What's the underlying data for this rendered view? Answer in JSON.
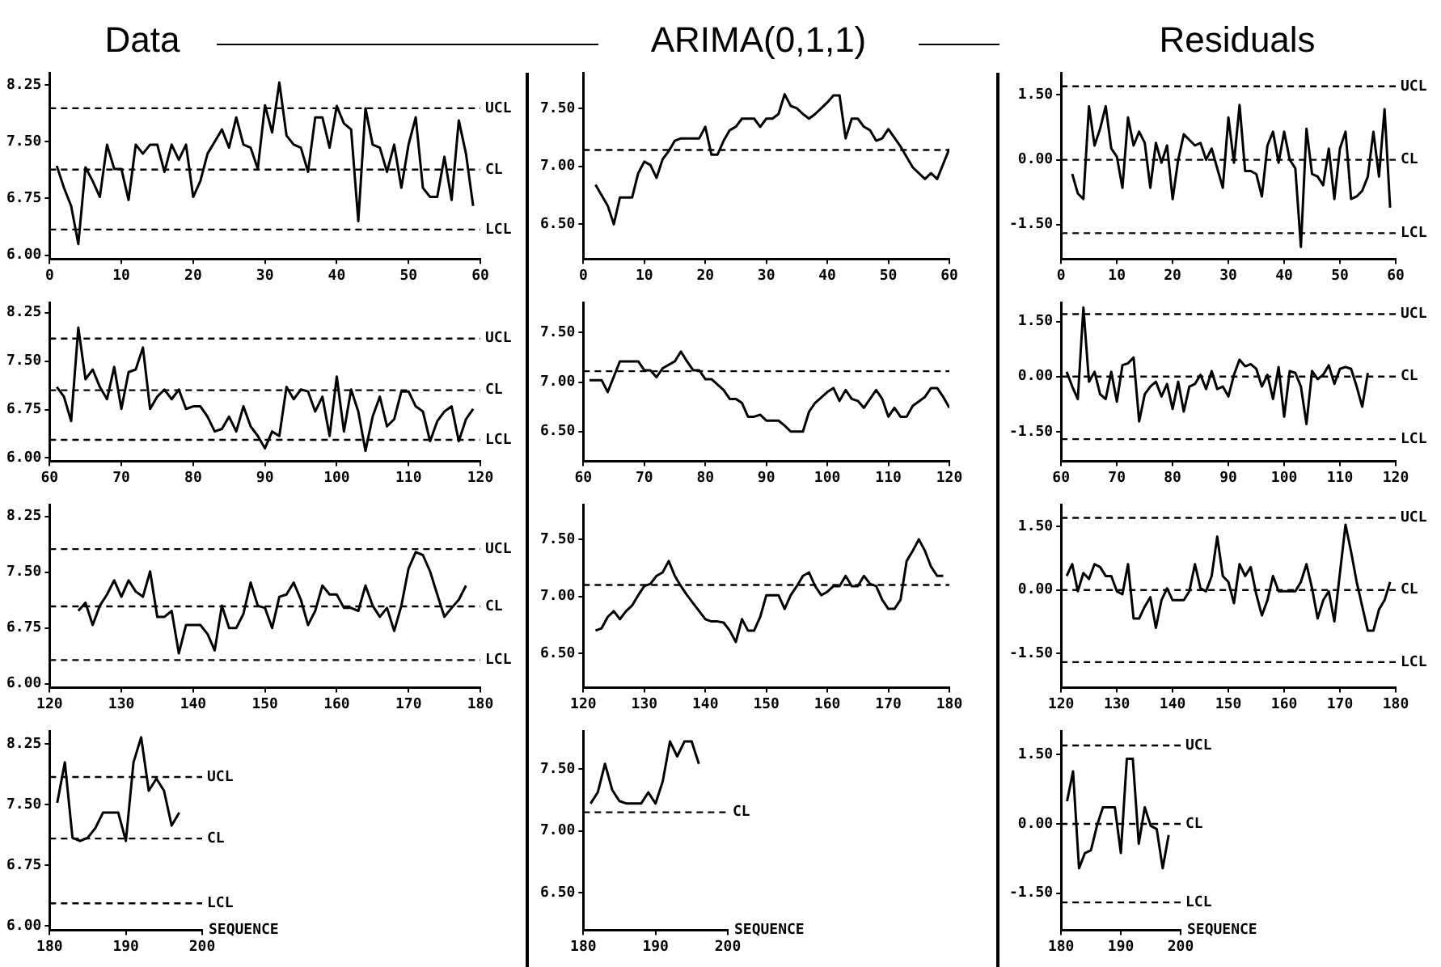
{
  "chart_data": [
    {
      "type": "line",
      "title": "Data",
      "color": "#000000",
      "marker": "none",
      "line_style": "solid",
      "grid": false,
      "xlim": [
        0,
        60
      ],
      "xticks": [
        0,
        10,
        20,
        30,
        40,
        50,
        60
      ],
      "ylim": [
        5.95,
        8.4
      ],
      "yticks": [
        {
          "value": 6,
          "label": "6.00"
        },
        {
          "value": 6.75,
          "label": "6.75"
        },
        {
          "value": 7.5,
          "label": "7.50"
        },
        {
          "value": 8.25,
          "label": "8.25"
        }
      ],
      "x": [
        1,
        2,
        3,
        4,
        5,
        6,
        7,
        8,
        9,
        10,
        11,
        12,
        13,
        14,
        15,
        16,
        17,
        18,
        19,
        20,
        21,
        22,
        23,
        24,
        25,
        26,
        27,
        28,
        29,
        30,
        31,
        32,
        33,
        34,
        35,
        36,
        37,
        38,
        39,
        40,
        41,
        42,
        43,
        44,
        45,
        46,
        47,
        48,
        49,
        50,
        51,
        52,
        53,
        54,
        55,
        56,
        57,
        58,
        59
      ],
      "values": [
        7.18,
        6.89,
        6.65,
        6.15,
        7.16,
        6.98,
        6.77,
        7.46,
        7.14,
        7.14,
        6.73,
        7.46,
        7.34,
        7.46,
        7.46,
        7.1,
        7.46,
        7.26,
        7.46,
        6.77,
        6.98,
        7.34,
        7.5,
        7.66,
        7.42,
        7.82,
        7.46,
        7.42,
        7.14,
        7.98,
        7.62,
        8.28,
        7.58,
        7.46,
        7.42,
        7.1,
        7.82,
        7.82,
        7.42,
        7.97,
        7.74,
        7.66,
        6.45,
        7.94,
        7.46,
        7.42,
        7.1,
        7.46,
        6.89,
        7.46,
        7.82,
        6.89,
        6.77,
        6.77,
        7.3,
        6.73,
        7.78,
        7.34,
        6.65
      ],
      "ref_lines": [
        {
          "axis": "y",
          "value": 7.94,
          "label": "UCL",
          "line_style": "dashed",
          "color": "#000000"
        },
        {
          "axis": "y",
          "value": 7.13,
          "label": "CL",
          "line_style": "dashed",
          "color": "#000000"
        },
        {
          "axis": "y",
          "value": 6.34,
          "label": "LCL",
          "line_style": "dashed",
          "color": "#000000"
        }
      ]
    },
    {
      "type": "line",
      "title": "ARIMA(0,1,1)",
      "color": "#000000",
      "marker": "none",
      "line_style": "solid",
      "grid": false,
      "xlim": [
        0,
        60
      ],
      "xticks": [
        0,
        10,
        20,
        30,
        40,
        50,
        60
      ],
      "ylim": [
        6.2,
        7.8
      ],
      "yticks": [
        {
          "value": 6.5,
          "label": "6.50"
        },
        {
          "value": 7,
          "label": "7.00"
        },
        {
          "value": 7.5,
          "label": "7.50"
        }
      ],
      "x": [
        2,
        3,
        4,
        5,
        6,
        7,
        8,
        9,
        10,
        11,
        12,
        13,
        14,
        15,
        16,
        17,
        18,
        19,
        20,
        21,
        22,
        23,
        24,
        25,
        26,
        27,
        28,
        29,
        30,
        31,
        32,
        33,
        34,
        35,
        36,
        37,
        38,
        39,
        40,
        41,
        42,
        43,
        44,
        45,
        46,
        47,
        48,
        49,
        50,
        52,
        54,
        56,
        57,
        58,
        60
      ],
      "values": [
        6.84,
        6.75,
        6.66,
        6.5,
        6.73,
        6.73,
        6.73,
        6.94,
        7.04,
        7.01,
        6.9,
        7.06,
        7.13,
        7.22,
        7.24,
        7.24,
        7.24,
        7.24,
        7.34,
        7.1,
        7.1,
        7.22,
        7.31,
        7.34,
        7.41,
        7.41,
        7.41,
        7.34,
        7.41,
        7.41,
        7.45,
        7.62,
        7.52,
        7.5,
        7.45,
        7.41,
        7.45,
        7.5,
        7.55,
        7.61,
        7.61,
        7.24,
        7.41,
        7.41,
        7.34,
        7.31,
        7.22,
        7.24,
        7.32,
        7.17,
        6.99,
        6.89,
        6.94,
        6.89,
        7.15
      ],
      "ref_lines": [
        {
          "axis": "y",
          "value": 7.14,
          "line_style": "dashed",
          "color": "#000000"
        }
      ]
    },
    {
      "type": "line",
      "title": "Residuals",
      "color": "#000000",
      "marker": "none",
      "line_style": "solid",
      "grid": false,
      "xlim": [
        0,
        60
      ],
      "xticks": [
        0,
        10,
        20,
        30,
        40,
        50,
        60
      ],
      "ylim": [
        -2.3,
        2
      ],
      "yticks": [
        {
          "value": -1.5,
          "label": "-1.50"
        },
        {
          "value": 0,
          "label": "0.00"
        },
        {
          "value": 1.5,
          "label": "1.50"
        }
      ],
      "x": [
        2,
        3,
        4,
        5,
        6,
        7,
        8,
        9,
        10,
        11,
        12,
        13,
        14,
        15,
        16,
        17,
        18,
        19,
        20,
        21,
        22,
        23,
        24,
        25,
        26,
        27,
        28,
        29,
        30,
        31,
        32,
        33,
        34,
        35,
        36,
        37,
        38,
        39,
        40,
        41,
        42,
        43,
        44,
        45,
        46,
        47,
        48,
        49,
        50,
        51,
        52,
        53,
        54,
        55,
        56,
        57,
        58,
        59
      ],
      "values": [
        -0.33,
        -0.78,
        -0.91,
        1.24,
        0.33,
        0.72,
        1.24,
        0.26,
        0.07,
        -0.65,
        0.98,
        0.33,
        0.65,
        0.39,
        -0.65,
        0.39,
        -0.07,
        0.33,
        -0.91,
        0,
        0.59,
        0.46,
        0.33,
        0.39,
        0,
        0.26,
        -0.2,
        -0.65,
        0.98,
        -0.07,
        1.27,
        -0.26,
        -0.26,
        -0.33,
        -0.85,
        0.33,
        0.65,
        -0.07,
        0.65,
        0,
        -0.2,
        -2.02,
        0.72,
        -0.33,
        -0.39,
        -0.59,
        0.26,
        -0.91,
        0.26,
        0.65,
        -0.91,
        -0.85,
        -0.72,
        -0.39,
        0.65,
        -0.39,
        1.17,
        -1.11
      ],
      "ref_lines": [
        {
          "axis": "y",
          "value": 1.7,
          "label": "UCL",
          "line_style": "dashed",
          "color": "#000000"
        },
        {
          "axis": "y",
          "value": 0,
          "label": "CL",
          "line_style": "dashed",
          "color": "#000000"
        },
        {
          "axis": "y",
          "value": -1.7,
          "label": "LCL",
          "line_style": "dashed",
          "color": "#000000"
        }
      ]
    },
    {
      "type": "line",
      "color": "#000000",
      "marker": "none",
      "line_style": "solid",
      "grid": false,
      "xlim": [
        60,
        120
      ],
      "xticks": [
        60,
        70,
        80,
        90,
        100,
        110,
        120
      ],
      "ylim": [
        5.95,
        8.4
      ],
      "yticks": [
        {
          "value": 6,
          "label": "6.00"
        },
        {
          "value": 6.75,
          "label": "6.75"
        },
        {
          "value": 7.5,
          "label": "7.50"
        },
        {
          "value": 8.25,
          "label": "8.25"
        }
      ],
      "x": [
        61,
        62,
        63,
        64,
        65,
        66,
        67,
        68,
        69,
        70,
        71,
        72,
        73,
        74,
        75,
        76,
        77,
        78,
        79,
        80,
        81,
        82,
        83,
        84,
        85,
        86,
        87,
        88,
        89,
        90,
        91,
        92,
        93,
        94,
        95,
        96,
        97,
        98,
        99,
        100,
        101,
        102,
        103,
        104,
        105,
        106,
        107,
        108,
        109,
        110,
        111,
        112,
        113,
        114,
        115,
        116,
        117,
        118,
        119
      ],
      "values": [
        7.1,
        6.95,
        6.57,
        8.02,
        7.22,
        7.37,
        7.1,
        6.91,
        7.41,
        6.76,
        7.33,
        7.37,
        7.71,
        6.76,
        6.95,
        7.06,
        6.91,
        7.06,
        6.76,
        6.8,
        6.8,
        6.64,
        6.41,
        6.45,
        6.64,
        6.41,
        6.8,
        6.49,
        6.34,
        6.15,
        6.41,
        6.34,
        7.1,
        6.91,
        7.06,
        7.03,
        6.72,
        6.95,
        6.34,
        7.26,
        6.41,
        7.06,
        6.72,
        6.11,
        6.64,
        6.95,
        6.49,
        6.6,
        7.03,
        7.03,
        6.8,
        6.72,
        6.26,
        6.57,
        6.72,
        6.8,
        6.26,
        6.6,
        6.76
      ],
      "ref_lines": [
        {
          "axis": "y",
          "value": 7.85,
          "label": "UCL",
          "line_style": "dashed",
          "color": "#000000"
        },
        {
          "axis": "y",
          "value": 7.05,
          "label": "CL",
          "line_style": "dashed",
          "color": "#000000"
        },
        {
          "axis": "y",
          "value": 6.28,
          "label": "LCL",
          "line_style": "dashed",
          "color": "#000000"
        }
      ]
    },
    {
      "type": "line",
      "color": "#000000",
      "marker": "none",
      "line_style": "solid",
      "grid": false,
      "xlim": [
        60,
        120
      ],
      "xticks": [
        60,
        70,
        80,
        90,
        100,
        110,
        120
      ],
      "ylim": [
        6.2,
        7.8
      ],
      "yticks": [
        {
          "value": 6.5,
          "label": "6.50"
        },
        {
          "value": 7,
          "label": "7.00"
        },
        {
          "value": 7.5,
          "label": "7.50"
        }
      ],
      "x": [
        61,
        62,
        63,
        64,
        66,
        67,
        68,
        69,
        70,
        71,
        72,
        73,
        75,
        76,
        77,
        78,
        79,
        80,
        81,
        83,
        84,
        85,
        86,
        87,
        88,
        89,
        90,
        92,
        93,
        94,
        95,
        96,
        97,
        98,
        100,
        101,
        102,
        103,
        104,
        105,
        106,
        108,
        109,
        110,
        111,
        112,
        113,
        114,
        116,
        117,
        118,
        119,
        120
      ],
      "values": [
        7.02,
        7.02,
        7.02,
        6.9,
        7.21,
        7.21,
        7.21,
        7.21,
        7.12,
        7.12,
        7.05,
        7.14,
        7.21,
        7.31,
        7.21,
        7.12,
        7.12,
        7.03,
        7.03,
        6.92,
        6.83,
        6.83,
        6.79,
        6.65,
        6.65,
        6.67,
        6.61,
        6.61,
        6.56,
        6.5,
        6.5,
        6.5,
        6.7,
        6.79,
        6.9,
        6.94,
        6.81,
        6.92,
        6.83,
        6.81,
        6.74,
        6.92,
        6.83,
        6.65,
        6.74,
        6.65,
        6.65,
        6.76,
        6.85,
        6.94,
        6.94,
        6.85,
        6.74
      ],
      "ref_lines": [
        {
          "axis": "y",
          "value": 7.11,
          "line_style": "dashed",
          "color": "#000000"
        }
      ]
    },
    {
      "type": "line",
      "color": "#000000",
      "marker": "none",
      "line_style": "solid",
      "grid": false,
      "xlim": [
        60,
        120
      ],
      "xticks": [
        60,
        70,
        80,
        90,
        100,
        110,
        120
      ],
      "ylim": [
        -2.3,
        2
      ],
      "yticks": [
        {
          "value": -1.5,
          "label": "-1.50"
        },
        {
          "value": 0,
          "label": "0.00"
        },
        {
          "value": 1.5,
          "label": "1.50"
        }
      ],
      "x": [
        61,
        62,
        63,
        64,
        65,
        66,
        67,
        68,
        69,
        70,
        71,
        72,
        73,
        74,
        75,
        76,
        77,
        78,
        79,
        80,
        81,
        82,
        83,
        84,
        85,
        86,
        87,
        88,
        89,
        90,
        91,
        92,
        93,
        94,
        95,
        96,
        97,
        98,
        99,
        100,
        101,
        102,
        103,
        104,
        105,
        106,
        107,
        108,
        109,
        110,
        111,
        112,
        113,
        114,
        115
      ],
      "values": [
        0.13,
        -0.27,
        -0.61,
        1.88,
        -0.14,
        0.13,
        -0.48,
        -0.61,
        0.13,
        -0.68,
        0.31,
        0.36,
        0.52,
        -1.22,
        -0.48,
        -0.27,
        -0.14,
        -0.54,
        -0.2,
        -0.88,
        -0.14,
        -0.95,
        -0.27,
        -0.2,
        0.05,
        -0.34,
        0.15,
        -0.34,
        -0.27,
        -0.54,
        0.05,
        0.46,
        0.28,
        0.34,
        0.21,
        -0.27,
        0.05,
        -0.61,
        0.26,
        -1.09,
        0.15,
        0.1,
        -0.27,
        -1.29,
        0.15,
        -0.07,
        0.05,
        0.31,
        -0.2,
        0.21,
        0.26,
        0.21,
        -0.27,
        -0.82,
        0.1
      ],
      "ref_lines": [
        {
          "axis": "y",
          "value": 1.7,
          "label": "UCL",
          "line_style": "dashed",
          "color": "#000000"
        },
        {
          "axis": "y",
          "value": 0,
          "label": "CL",
          "line_style": "dashed",
          "color": "#000000"
        },
        {
          "axis": "y",
          "value": -1.7,
          "label": "LCL",
          "line_style": "dashed",
          "color": "#000000"
        }
      ]
    },
    {
      "type": "line",
      "color": "#000000",
      "marker": "none",
      "line_style": "solid",
      "grid": false,
      "xlim": [
        120,
        180
      ],
      "xticks": [
        120,
        130,
        140,
        150,
        160,
        170,
        180
      ],
      "ylim": [
        5.95,
        8.4
      ],
      "yticks": [
        {
          "value": 6,
          "label": "6.00"
        },
        {
          "value": 6.75,
          "label": "6.75"
        },
        {
          "value": 7.5,
          "label": "7.50"
        },
        {
          "value": 8.25,
          "label": "8.25"
        }
      ],
      "x": [
        124,
        125,
        126,
        127,
        128,
        129,
        130,
        131,
        132,
        133,
        134,
        135,
        136,
        137,
        138,
        139,
        140,
        141,
        142,
        143,
        144,
        145,
        146,
        147,
        148,
        149,
        150,
        151,
        152,
        153,
        154,
        155,
        156,
        157,
        158,
        159,
        160,
        161,
        162,
        163,
        164,
        165,
        166,
        167,
        168,
        169,
        170,
        171,
        172,
        173,
        174,
        175,
        176,
        177,
        178
      ],
      "values": [
        6.98,
        7.09,
        6.79,
        7.05,
        7.2,
        7.39,
        7.17,
        7.39,
        7.24,
        7.17,
        7.51,
        6.9,
        6.9,
        6.98,
        6.41,
        6.79,
        6.79,
        6.79,
        6.67,
        6.45,
        7.05,
        6.75,
        6.75,
        6.94,
        7.36,
        7.05,
        7.02,
        6.75,
        7.17,
        7.2,
        7.36,
        7.13,
        6.79,
        6.98,
        7.32,
        7.2,
        7.2,
        7.02,
        7.02,
        6.98,
        7.32,
        7.05,
        6.9,
        7.02,
        6.71,
        7.05,
        7.55,
        7.77,
        7.73,
        7.51,
        7.2,
        6.9,
        7.02,
        7.13,
        7.32
      ],
      "ref_lines": [
        {
          "axis": "y",
          "value": 7.81,
          "label": "UCL",
          "line_style": "dashed",
          "color": "#000000"
        },
        {
          "axis": "y",
          "value": 7.04,
          "label": "CL",
          "line_style": "dashed",
          "color": "#000000"
        },
        {
          "axis": "y",
          "value": 6.32,
          "label": "LCL",
          "line_style": "dashed",
          "color": "#000000"
        }
      ]
    },
    {
      "type": "line",
      "color": "#000000",
      "marker": "none",
      "line_style": "solid",
      "grid": false,
      "xlim": [
        120,
        180
      ],
      "xticks": [
        120,
        130,
        140,
        150,
        160,
        170,
        180
      ],
      "ylim": [
        6.2,
        7.8
      ],
      "yticks": [
        {
          "value": 6.5,
          "label": "6.50"
        },
        {
          "value": 7,
          "label": "7.00"
        },
        {
          "value": 7.5,
          "label": "7.50"
        }
      ],
      "x": [
        122,
        123,
        124,
        125,
        126,
        127,
        128,
        129,
        130,
        131,
        132,
        133,
        134,
        135,
        136,
        137,
        138,
        139,
        140,
        141,
        142,
        143,
        144,
        145,
        146,
        147,
        148,
        149,
        150,
        151,
        152,
        153,
        154,
        155,
        156,
        157,
        158,
        159,
        160,
        161,
        162,
        163,
        164,
        165,
        166,
        167,
        168,
        169,
        170,
        171,
        172,
        173,
        174,
        175,
        176,
        177,
        178,
        179
      ],
      "values": [
        6.7,
        6.72,
        6.82,
        6.87,
        6.8,
        6.87,
        6.92,
        7.01,
        7.09,
        7.11,
        7.18,
        7.21,
        7.31,
        7.18,
        7.09,
        7.01,
        6.94,
        6.87,
        6.8,
        6.78,
        6.78,
        6.77,
        6.7,
        6.6,
        6.8,
        6.7,
        6.7,
        6.82,
        7.01,
        7.01,
        7.01,
        6.89,
        7.01,
        7.09,
        7.18,
        7.21,
        7.09,
        7.01,
        7.04,
        7.09,
        7.09,
        7.18,
        7.09,
        7.09,
        7.18,
        7.11,
        7.09,
        6.97,
        6.89,
        6.89,
        6.97,
        7.31,
        7.4,
        7.5,
        7.4,
        7.26,
        7.18,
        7.18
      ],
      "ref_lines": [
        {
          "axis": "y",
          "value": 7.1,
          "line_style": "dashed",
          "color": "#000000"
        }
      ]
    },
    {
      "type": "line",
      "color": "#000000",
      "marker": "none",
      "line_style": "solid",
      "grid": false,
      "xlim": [
        120,
        180
      ],
      "xticks": [
        120,
        130,
        140,
        150,
        160,
        170,
        180
      ],
      "ylim": [
        -2.3,
        2
      ],
      "yticks": [
        {
          "value": -1.5,
          "label": "-1.50"
        },
        {
          "value": 0,
          "label": "0.00"
        },
        {
          "value": 1.5,
          "label": "1.50"
        }
      ],
      "x": [
        121,
        122,
        123,
        124,
        125,
        126,
        127,
        128,
        129,
        130,
        131,
        132,
        133,
        134,
        135,
        136,
        137,
        138,
        139,
        140,
        141,
        142,
        143,
        144,
        145,
        146,
        147,
        148,
        149,
        150,
        151,
        152,
        153,
        154,
        155,
        156,
        157,
        158,
        159,
        160,
        161,
        162,
        163,
        164,
        165,
        166,
        167,
        168,
        169,
        170,
        171,
        172,
        173,
        174,
        175,
        176,
        177,
        178,
        179
      ],
      "values": [
        0.33,
        0.61,
        -0.03,
        0.4,
        0.26,
        0.61,
        0.54,
        0.33,
        0.33,
        -0.03,
        -0.1,
        0.61,
        -0.67,
        -0.67,
        -0.39,
        -0.17,
        -0.89,
        -0.24,
        0.04,
        -0.24,
        -0.24,
        -0.24,
        -0.03,
        0.61,
        0.04,
        -0.03,
        0.33,
        1.26,
        0.33,
        0.19,
        -0.31,
        0.61,
        0.33,
        0.54,
        -0.1,
        -0.6,
        -0.24,
        0.33,
        -0.03,
        -0.03,
        -0.03,
        -0.03,
        0.19,
        0.61,
        0.04,
        -0.67,
        -0.24,
        -0.03,
        -0.74,
        0.4,
        1.54,
        0.9,
        0.19,
        -0.39,
        -0.96,
        -0.96,
        -0.46,
        -0.24,
        0.19
      ],
      "ref_lines": [
        {
          "axis": "y",
          "value": 1.7,
          "label": "UCL",
          "line_style": "dashed",
          "color": "#000000"
        },
        {
          "axis": "y",
          "value": 0,
          "label": "CL",
          "line_style": "dashed",
          "color": "#000000"
        },
        {
          "axis": "y",
          "value": -1.7,
          "label": "LCL",
          "line_style": "dashed",
          "color": "#000000"
        }
      ]
    },
    {
      "type": "line",
      "xlabel": "SEQUENCE",
      "color": "#000000",
      "marker": "none",
      "line_style": "solid",
      "grid": false,
      "xlim": [
        180,
        200
      ],
      "xticks": [
        180,
        190,
        200
      ],
      "ylim": [
        5.95,
        8.4
      ],
      "yticks": [
        {
          "value": 6,
          "label": "6.00"
        },
        {
          "value": 6.75,
          "label": "6.75"
        },
        {
          "value": 7.5,
          "label": "7.50"
        },
        {
          "value": 8.25,
          "label": "8.25"
        }
      ],
      "x": [
        181,
        182,
        183,
        184,
        185,
        186,
        187,
        188,
        189,
        190,
        191,
        192,
        193,
        194,
        195,
        196,
        197
      ],
      "values": [
        7.52,
        8.02,
        7.09,
        7.05,
        7.09,
        7.21,
        7.4,
        7.4,
        7.4,
        7.05,
        8.02,
        8.33,
        7.67,
        7.82,
        7.67,
        7.24,
        7.4
      ],
      "ref_lines": [
        {
          "axis": "y",
          "value": 7.84,
          "label": "UCL",
          "line_style": "dashed",
          "color": "#000000"
        },
        {
          "axis": "y",
          "value": 7.08,
          "label": "CL",
          "line_style": "dashed",
          "color": "#000000"
        },
        {
          "axis": "y",
          "value": 6.28,
          "label": "LCL",
          "line_style": "dashed",
          "color": "#000000"
        }
      ]
    },
    {
      "type": "line",
      "xlabel": "SEQUENCE",
      "color": "#000000",
      "marker": "none",
      "line_style": "solid",
      "grid": false,
      "xlim": [
        180,
        200
      ],
      "xticks": [
        180,
        190,
        200
      ],
      "ylim": [
        6.2,
        7.8
      ],
      "yticks": [
        {
          "value": 6.5,
          "label": "6.50"
        },
        {
          "value": 7,
          "label": "7.00"
        },
        {
          "value": 7.5,
          "label": "7.50"
        }
      ],
      "x": [
        181,
        182,
        183,
        184,
        185,
        186,
        187,
        188,
        189,
        190,
        191,
        192,
        193,
        194,
        195,
        196
      ],
      "values": [
        7.22,
        7.31,
        7.54,
        7.33,
        7.24,
        7.22,
        7.22,
        7.22,
        7.31,
        7.22,
        7.4,
        7.72,
        7.6,
        7.72,
        7.72,
        7.54
      ],
      "ref_lines": [
        {
          "axis": "y",
          "value": 7.15,
          "label": "CL",
          "line_style": "dashed",
          "color": "#000000"
        }
      ]
    },
    {
      "type": "line",
      "xlabel": "SEQUENCE",
      "color": "#000000",
      "marker": "none",
      "line_style": "solid",
      "grid": false,
      "xlim": [
        180,
        200
      ],
      "xticks": [
        180,
        190,
        200
      ],
      "ylim": [
        -2.3,
        2
      ],
      "yticks": [
        {
          "value": -1.5,
          "label": "-1.50"
        },
        {
          "value": 0,
          "label": "0.00"
        },
        {
          "value": 1.5,
          "label": "1.50"
        }
      ],
      "x": [
        181,
        182,
        183,
        184,
        185,
        186,
        187,
        188,
        189,
        190,
        191,
        192,
        193,
        194,
        195,
        196,
        197,
        198
      ],
      "values": [
        0.49,
        1.14,
        -0.96,
        -0.63,
        -0.57,
        -0.04,
        0.36,
        0.36,
        0.36,
        -0.63,
        1.41,
        1.41,
        -0.43,
        0.36,
        -0.04,
        -0.11,
        -0.96,
        -0.24
      ],
      "ref_lines": [
        {
          "axis": "y",
          "value": 1.7,
          "label": "UCL",
          "line_style": "dashed",
          "color": "#000000"
        },
        {
          "axis": "y",
          "value": 0,
          "label": "CL",
          "line_style": "dashed",
          "color": "#000000"
        },
        {
          "axis": "y",
          "value": -1.7,
          "label": "LCL",
          "line_style": "dashed",
          "color": "#000000"
        }
      ]
    }
  ]
}
